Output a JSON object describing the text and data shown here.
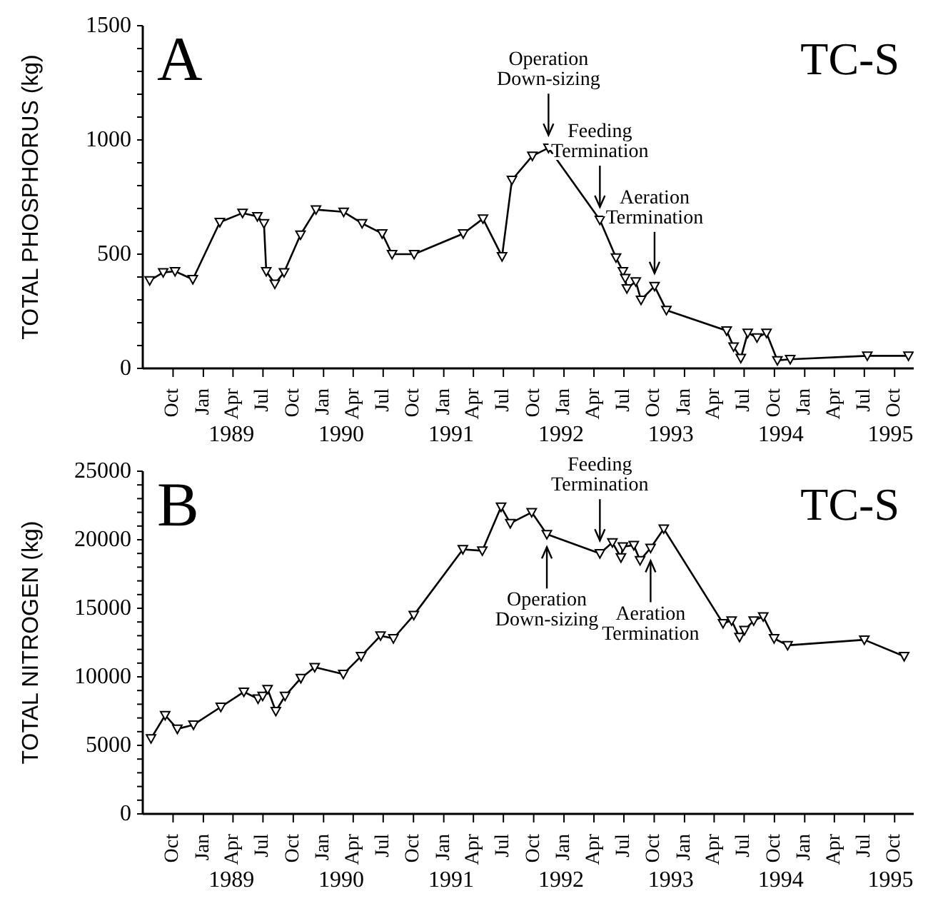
{
  "chart_data": [
    {
      "type": "line",
      "title": "A",
      "subtitle": "TC-S",
      "ylabel": "TOTAL PHOSPHORUS (kg)",
      "marker": "triangle",
      "line_style": "solid",
      "xlim": [
        "1988-07-01",
        "1994-11-28"
      ],
      "xticks": [
        {
          "value": "1988-10",
          "label": "Oct"
        },
        {
          "value": "1989-01",
          "label": "Jan"
        },
        {
          "value": "1989-04",
          "label": "Apr"
        },
        {
          "value": "1989-07",
          "label": "Jul"
        },
        {
          "value": "1989-10",
          "label": "Oct"
        },
        {
          "value": "1990-01",
          "label": "Jan"
        },
        {
          "value": "1990-04",
          "label": "Apr"
        },
        {
          "value": "1990-07",
          "label": "Jul"
        },
        {
          "value": "1990-10",
          "label": "Oct"
        },
        {
          "value": "1991-01",
          "label": "Jan"
        },
        {
          "value": "1991-04",
          "label": "Apr"
        },
        {
          "value": "1991-07",
          "label": "Jul"
        },
        {
          "value": "1991-10",
          "label": "Oct"
        },
        {
          "value": "1992-01",
          "label": "Jan"
        },
        {
          "value": "1992-04",
          "label": "Apr"
        },
        {
          "value": "1992-07",
          "label": "Jul"
        },
        {
          "value": "1992-10",
          "label": "Oct"
        },
        {
          "value": "1993-01",
          "label": "Jan"
        },
        {
          "value": "1993-04",
          "label": "Apr"
        },
        {
          "value": "1993-07",
          "label": "Jul"
        },
        {
          "value": "1993-10",
          "label": "Oct"
        },
        {
          "value": "1994-01",
          "label": "Jan"
        },
        {
          "value": "1994-04",
          "label": "Apr"
        },
        {
          "value": "1994-07",
          "label": "Jul"
        },
        {
          "value": "1994-10",
          "label": "Oct"
        }
      ],
      "ylim": [
        0,
        1500
      ],
      "yticks": [
        0,
        {
          "value": 100,
          "label": null
        },
        {
          "value": 200,
          "label": null
        },
        {
          "value": 300,
          "label": null
        },
        {
          "value": 400,
          "label": null
        },
        500,
        {
          "value": 600,
          "label": null
        },
        {
          "value": 700,
          "label": null
        },
        {
          "value": 800,
          "label": null
        },
        {
          "value": 900,
          "label": null
        },
        1000,
        {
          "value": 1100,
          "label": null
        },
        {
          "value": 1200,
          "label": null
        },
        {
          "value": 1300,
          "label": null
        },
        {
          "value": 1400,
          "label": null
        },
        1500
      ],
      "x": [
        "1988-07-22",
        "1988-09-01",
        "1988-10-07",
        "1988-11-30",
        "1989-02-20",
        "1989-04-30",
        "1989-06-14",
        "1989-07-04",
        "1989-07-11",
        "1989-08-06",
        "1989-09-03",
        "1989-10-23",
        "1989-12-09",
        "1990-03-03",
        "1990-04-28",
        "1990-06-28",
        "1990-07-28",
        "1990-10-03",
        "1991-03-01",
        "1991-04-30",
        "1991-06-27",
        "1991-07-27",
        "1991-09-27",
        "1991-11-15",
        "1992-04-19",
        "1992-06-07",
        "1992-06-28",
        "1992-07-05",
        "1992-07-10",
        "1992-08-06",
        "1992-08-22",
        "1992-10-02",
        "1992-11-07",
        "1993-05-09",
        "1993-05-30",
        "1993-06-21",
        "1993-07-12",
        "1993-08-09",
        "1993-09-07",
        "1993-10-10",
        "1993-11-18",
        "1994-07-10",
        "1994-11-12"
      ],
      "series": [
        {
          "color": "#000000",
          "values": [
            385,
            420,
            425,
            390,
            640,
            680,
            665,
            635,
            425,
            370,
            420,
            585,
            695,
            685,
            635,
            590,
            500,
            500,
            590,
            655,
            490,
            825,
            930,
            965,
            650,
            485,
            425,
            395,
            350,
            380,
            300,
            360,
            255,
            165,
            95,
            45,
            155,
            135,
            155,
            35,
            40,
            55,
            55
          ]
        }
      ],
      "annotations": [
        "1989",
        "1990",
        "1991",
        "1992",
        "1993",
        "1994",
        "1995",
        {
          "text": "Operation Down-sizing",
          "x": "1991-11-15",
          "y": 965
        },
        {
          "text": "Feeding Termination",
          "x": "1992-04-19",
          "y": 650
        },
        {
          "text": "Aeration Termination",
          "x": "1992-10-02",
          "y": 360
        }
      ]
    },
    {
      "type": "line",
      "title": "B",
      "subtitle": "TC-S",
      "ylabel": "TOTAL NITROGEN (kg)",
      "marker": "triangle",
      "line_style": "solid",
      "xlim": [
        "1988-07-01",
        "1994-11-28"
      ],
      "xticks": [
        {
          "value": "1988-10",
          "label": "Oct"
        },
        {
          "value": "1989-01",
          "label": "Jan"
        },
        {
          "value": "1989-04",
          "label": "Apr"
        },
        {
          "value": "1989-07",
          "label": "Jul"
        },
        {
          "value": "1989-10",
          "label": "Oct"
        },
        {
          "value": "1990-01",
          "label": "Jan"
        },
        {
          "value": "1990-04",
          "label": "Apr"
        },
        {
          "value": "1990-07",
          "label": "Jul"
        },
        {
          "value": "1990-10",
          "label": "Oct"
        },
        {
          "value": "1991-01",
          "label": "Jan"
        },
        {
          "value": "1991-04",
          "label": "Apr"
        },
        {
          "value": "1991-07",
          "label": "Jul"
        },
        {
          "value": "1991-10",
          "label": "Oct"
        },
        {
          "value": "1992-01",
          "label": "Jan"
        },
        {
          "value": "1992-04",
          "label": "Apr"
        },
        {
          "value": "1992-07",
          "label": "Jul"
        },
        {
          "value": "1992-10",
          "label": "Oct"
        },
        {
          "value": "1993-01",
          "label": "Jan"
        },
        {
          "value": "1993-04",
          "label": "Apr"
        },
        {
          "value": "1993-07",
          "label": "Jul"
        },
        {
          "value": "1993-10",
          "label": "Oct"
        },
        {
          "value": "1994-01",
          "label": "Jan"
        },
        {
          "value": "1994-04",
          "label": "Apr"
        },
        {
          "value": "1994-07",
          "label": "Jul"
        },
        {
          "value": "1994-10",
          "label": "Oct"
        }
      ],
      "ylim": [
        0,
        25000
      ],
      "yticks": [
        0,
        {
          "value": 1000,
          "label": null
        },
        {
          "value": 2000,
          "label": null
        },
        {
          "value": 3000,
          "label": null
        },
        {
          "value": 4000,
          "label": null
        },
        5000,
        {
          "value": 6000,
          "label": null
        },
        {
          "value": 7000,
          "label": null
        },
        {
          "value": 8000,
          "label": null
        },
        {
          "value": 9000,
          "label": null
        },
        10000,
        {
          "value": 11000,
          "label": null
        },
        {
          "value": 12000,
          "label": null
        },
        {
          "value": 13000,
          "label": null
        },
        {
          "value": 14000,
          "label": null
        },
        15000,
        {
          "value": 16000,
          "label": null
        },
        {
          "value": 17000,
          "label": null
        },
        {
          "value": 18000,
          "label": null
        },
        {
          "value": 19000,
          "label": null
        },
        20000,
        {
          "value": 21000,
          "label": null
        },
        {
          "value": 22000,
          "label": null
        },
        {
          "value": 23000,
          "label": null
        },
        {
          "value": 24000,
          "label": null
        },
        25000
      ],
      "x": [
        "1988-07-26",
        "1988-09-07",
        "1988-10-14",
        "1988-12-02",
        "1989-02-23",
        "1989-05-04",
        "1989-06-16",
        "1989-06-30",
        "1989-07-15",
        "1989-08-09",
        "1989-09-06",
        "1989-10-24",
        "1989-12-05",
        "1990-03-02",
        "1990-04-25",
        "1990-06-23",
        "1990-08-01",
        "1990-10-02",
        "1991-02-28",
        "1991-04-28",
        "1991-06-24",
        "1991-07-22",
        "1991-09-25",
        "1991-11-10",
        "1992-04-19",
        "1992-05-27",
        "1992-06-22",
        "1992-06-28",
        "1992-07-31",
        "1992-08-19",
        "1992-09-20",
        "1992-10-30",
        "1993-04-28",
        "1993-05-24",
        "1993-06-17",
        "1993-07-02",
        "1993-07-30",
        "1993-08-28",
        "1993-09-30",
        "1993-11-10",
        "1994-07-01",
        "1994-10-30"
      ],
      "series": [
        {
          "color": "#000000",
          "values": [
            5500,
            7200,
            6200,
            6500,
            7800,
            8900,
            8400,
            8600,
            9100,
            7500,
            8600,
            9900,
            10700,
            10200,
            11500,
            13000,
            12800,
            14500,
            19300,
            19200,
            22400,
            21200,
            22000,
            20400,
            19000,
            19800,
            18700,
            19500,
            19600,
            18500,
            19400,
            20800,
            13900,
            14100,
            12900,
            13400,
            14100,
            14400,
            12800,
            12300,
            12700,
            11500
          ]
        }
      ],
      "annotations": [
        "1989",
        "1990",
        "1991",
        "1992",
        "1993",
        "1994",
        "1995",
        {
          "text": "Operation Down-sizing",
          "x": "1991-11-10",
          "y": 20400
        },
        {
          "text": "Feeding Termination",
          "x": "1992-04-19",
          "y": 19000
        },
        {
          "text": "Aeration Termination",
          "x": "1992-09-20",
          "y": 19400
        }
      ]
    }
  ]
}
